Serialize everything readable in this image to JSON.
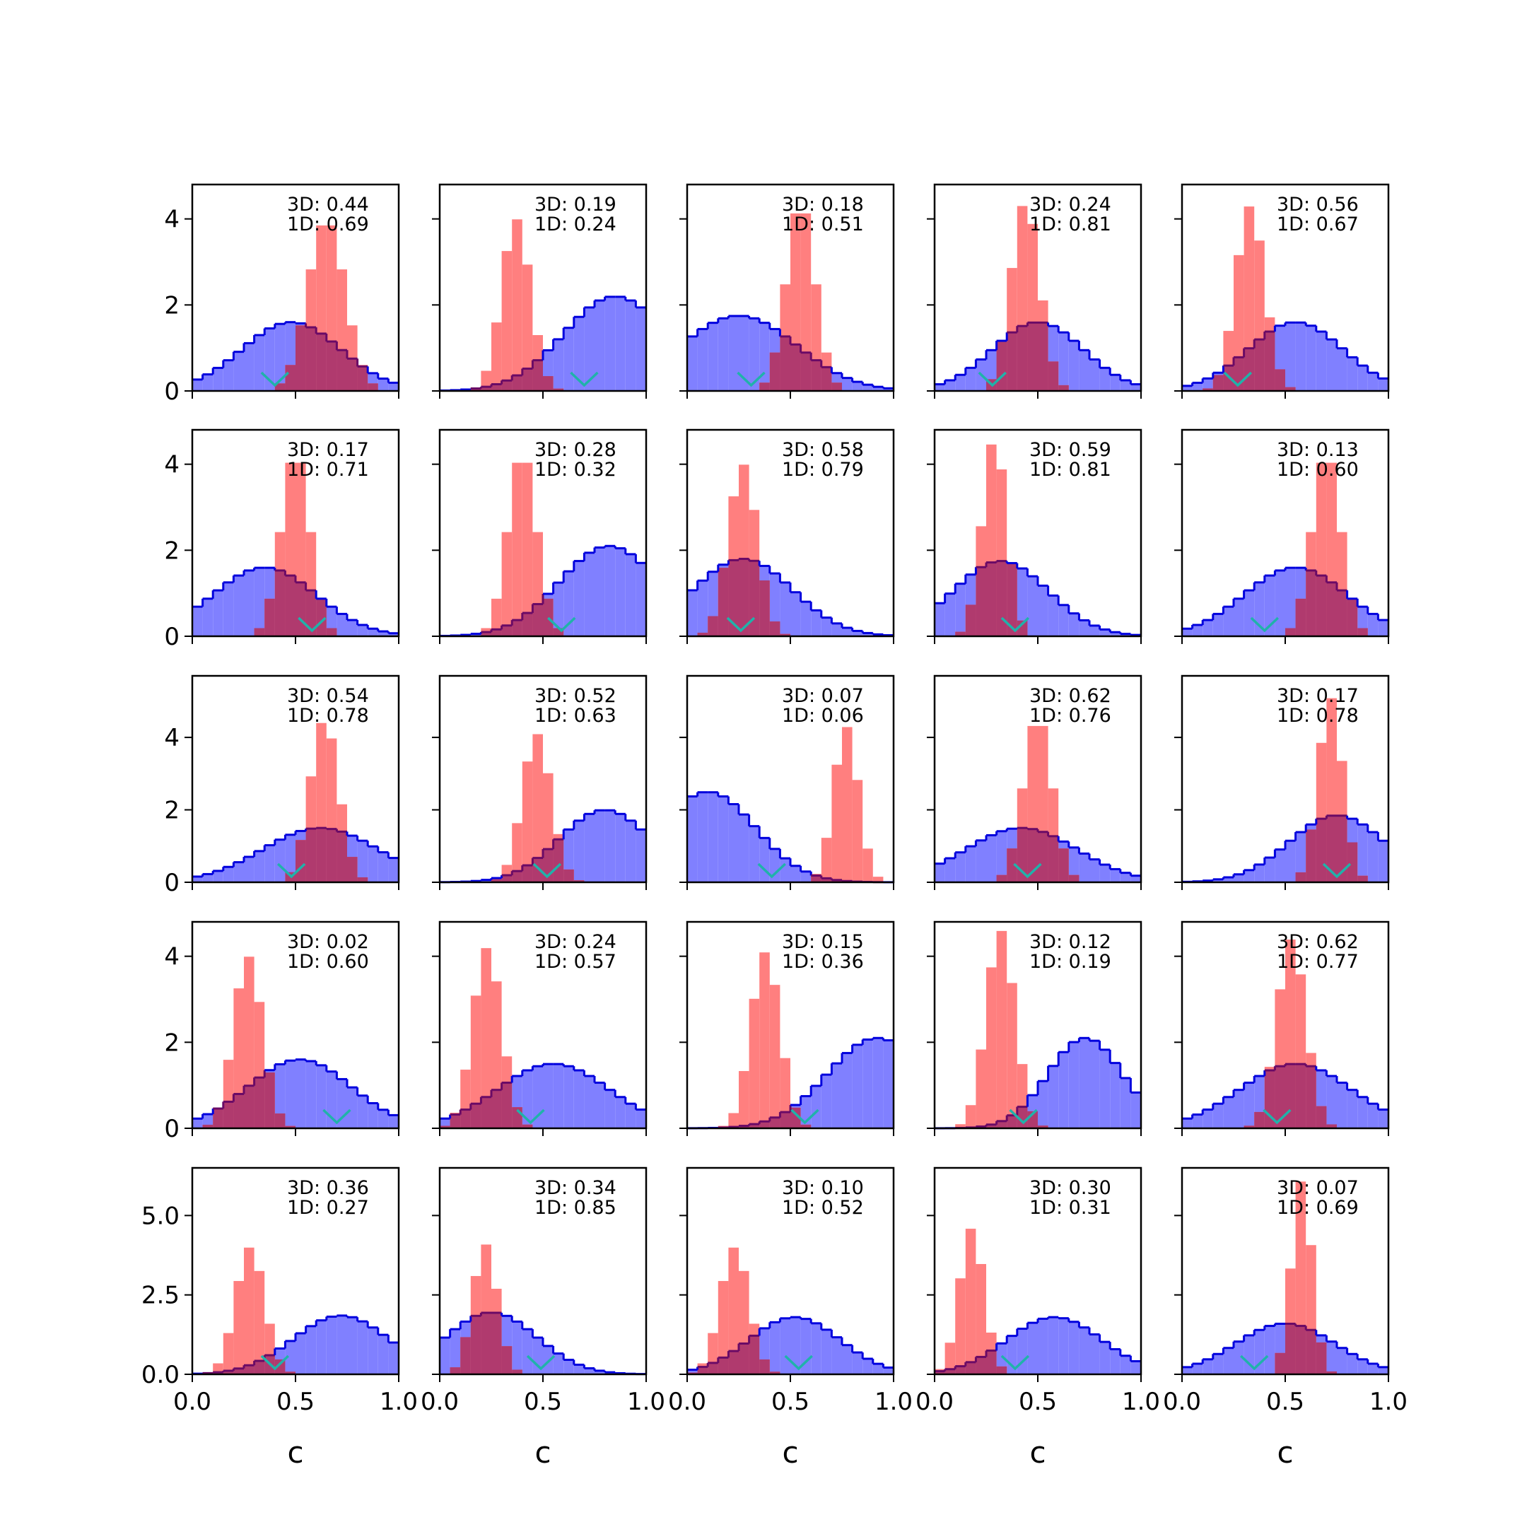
{
  "colors": {
    "blue_fill": "#8080ff",
    "blue_line": "#0000dd",
    "red_fill": "#ff7f7f",
    "overlap_fill": "#b03a6e",
    "overlap_line": "#6a0a66",
    "marker": "#20b2aa",
    "axis": "#000000"
  },
  "marker_icon": "chevron-down-icon",
  "chart_data": {
    "type": "histogram-grid",
    "rows": 5,
    "cols": 5,
    "xlabel": "c",
    "xlim": [
      0,
      1
    ],
    "x_ticks": [
      0.0,
      0.5,
      1.0
    ],
    "x_tick_labels": [
      "0.0",
      "0.5",
      "1.0"
    ],
    "row_ylim": [
      [
        0,
        4.8
      ],
      [
        0,
        4.8
      ],
      [
        0,
        5.7
      ],
      [
        0,
        4.8
      ],
      [
        0,
        6.5
      ]
    ],
    "row_y_ticks": [
      [
        0,
        2,
        4
      ],
      [
        0,
        2,
        4
      ],
      [
        0,
        2,
        4
      ],
      [
        0,
        2,
        4
      ],
      [
        0,
        2.5,
        5.0
      ]
    ],
    "row_y_tick_labels": [
      [
        "0",
        "2",
        "4"
      ],
      [
        "0",
        "2",
        "4"
      ],
      [
        "0",
        "2",
        "4"
      ],
      [
        "0",
        "2",
        "4"
      ],
      [
        "0.0",
        "2.5",
        "5.0"
      ]
    ],
    "panels": [
      {
        "label_3d": "3D: 0.44",
        "label_1d": "1D: 0.69",
        "wide": {
          "mu": 0.48,
          "sd": 0.24,
          "peak": 1.6
        },
        "narrow": {
          "mu": 0.65,
          "sd": 0.09,
          "peak": 4.0
        },
        "marker": 0.4
      },
      {
        "label_3d": "3D: 0.19",
        "label_1d": "1D: 0.24",
        "wide": {
          "mu": 0.85,
          "sd": 0.25,
          "peak": 2.2
        },
        "narrow": {
          "mu": 0.37,
          "sd": 0.07,
          "peak": 4.0
        },
        "marker": 0.7
      },
      {
        "label_3d": "3D: 0.18",
        "label_1d": "1D: 0.51",
        "wide": {
          "mu": 0.25,
          "sd": 0.28,
          "peak": 1.75
        },
        "narrow": {
          "mu": 0.55,
          "sd": 0.07,
          "peak": 4.4
        },
        "marker": 0.31
      },
      {
        "label_3d": "3D: 0.24",
        "label_1d": "1D: 0.81",
        "wide": {
          "mu": 0.5,
          "sd": 0.22,
          "peak": 1.6
        },
        "narrow": {
          "mu": 0.44,
          "sd": 0.07,
          "peak": 4.4
        },
        "marker": 0.28
      },
      {
        "label_3d": "3D: 0.56",
        "label_1d": "1D: 0.67",
        "wide": {
          "mu": 0.55,
          "sd": 0.23,
          "peak": 1.6
        },
        "narrow": {
          "mu": 0.33,
          "sd": 0.07,
          "peak": 4.3
        },
        "marker": 0.27
      },
      {
        "label_3d": "3D: 0.17",
        "label_1d": "1D: 0.71",
        "wide": {
          "mu": 0.35,
          "sd": 0.25,
          "peak": 1.6
        },
        "narrow": {
          "mu": 0.5,
          "sd": 0.07,
          "peak": 4.3
        },
        "marker": 0.58
      },
      {
        "label_3d": "3D: 0.28",
        "label_1d": "1D: 0.32",
        "wide": {
          "mu": 0.82,
          "sd": 0.24,
          "peak": 2.1
        },
        "narrow": {
          "mu": 0.4,
          "sd": 0.07,
          "peak": 4.3
        },
        "marker": 0.59
      },
      {
        "label_3d": "3D: 0.58",
        "label_1d": "1D: 0.79",
        "wide": {
          "mu": 0.27,
          "sd": 0.24,
          "peak": 1.8
        },
        "narrow": {
          "mu": 0.27,
          "sd": 0.07,
          "peak": 4.0
        },
        "marker": 0.26
      },
      {
        "label_3d": "3D: 0.59",
        "label_1d": "1D: 0.81",
        "wide": {
          "mu": 0.32,
          "sd": 0.23,
          "peak": 1.75
        },
        "narrow": {
          "mu": 0.29,
          "sd": 0.06,
          "peak": 4.6
        },
        "marker": 0.39
      },
      {
        "label_3d": "3D: 0.13",
        "label_1d": "1D: 0.60",
        "wide": {
          "mu": 0.55,
          "sd": 0.25,
          "peak": 1.6
        },
        "narrow": {
          "mu": 0.7,
          "sd": 0.07,
          "peak": 4.3
        },
        "marker": 0.4
      },
      {
        "label_3d": "3D: 0.54",
        "label_1d": "1D: 0.78",
        "wide": {
          "mu": 0.62,
          "sd": 0.28,
          "peak": 1.5
        },
        "narrow": {
          "mu": 0.64,
          "sd": 0.07,
          "peak": 4.5
        },
        "marker": 0.48
      },
      {
        "label_3d": "3D: 0.52",
        "label_1d": "1D: 0.63",
        "wide": {
          "mu": 0.8,
          "sd": 0.22,
          "peak": 2.0
        },
        "narrow": {
          "mu": 0.47,
          "sd": 0.07,
          "peak": 4.1
        },
        "marker": 0.52
      },
      {
        "label_3d": "3D: 0.07",
        "label_1d": "1D: 0.06",
        "wide": {
          "mu": 0.1,
          "sd": 0.23,
          "peak": 2.5
        },
        "narrow": {
          "mu": 0.77,
          "sd": 0.06,
          "peak": 4.3
        },
        "marker": 0.41
      },
      {
        "label_3d": "3D: 0.62",
        "label_1d": "1D: 0.76",
        "wide": {
          "mu": 0.42,
          "sd": 0.27,
          "peak": 1.5
        },
        "narrow": {
          "mu": 0.5,
          "sd": 0.07,
          "peak": 4.6
        },
        "marker": 0.45
      },
      {
        "label_3d": "3D: 0.17",
        "label_1d": "1D: 0.78",
        "wide": {
          "mu": 0.75,
          "sd": 0.23,
          "peak": 1.85
        },
        "narrow": {
          "mu": 0.72,
          "sd": 0.06,
          "peak": 5.1
        },
        "marker": 0.75
      },
      {
        "label_3d": "3D: 0.02",
        "label_1d": "1D: 0.60",
        "wide": {
          "mu": 0.52,
          "sd": 0.25,
          "peak": 1.6
        },
        "narrow": {
          "mu": 0.27,
          "sd": 0.07,
          "peak": 4.0
        },
        "marker": 0.7
      },
      {
        "label_3d": "3D: 0.24",
        "label_1d": "1D: 0.57",
        "wide": {
          "mu": 0.55,
          "sd": 0.27,
          "peak": 1.5
        },
        "narrow": {
          "mu": 0.23,
          "sd": 0.07,
          "peak": 4.2
        },
        "marker": 0.44
      },
      {
        "label_3d": "3D: 0.15",
        "label_1d": "1D: 0.36",
        "wide": {
          "mu": 0.92,
          "sd": 0.24,
          "peak": 2.1
        },
        "narrow": {
          "mu": 0.38,
          "sd": 0.07,
          "peak": 4.1
        },
        "marker": 0.57
      },
      {
        "label_3d": "3D: 0.12",
        "label_1d": "1D: 0.19",
        "wide": {
          "mu": 0.73,
          "sd": 0.18,
          "peak": 2.1
        },
        "narrow": {
          "mu": 0.32,
          "sd": 0.07,
          "peak": 4.6
        },
        "marker": 0.43
      },
      {
        "label_3d": "3D: 0.62",
        "label_1d": "1D: 0.77",
        "wide": {
          "mu": 0.55,
          "sd": 0.27,
          "peak": 1.5
        },
        "narrow": {
          "mu": 0.53,
          "sd": 0.07,
          "peak": 4.4
        },
        "marker": 0.46
      },
      {
        "label_3d": "3D: 0.36",
        "label_1d": "1D: 0.27",
        "wide": {
          "mu": 0.72,
          "sd": 0.23,
          "peak": 1.85
        },
        "narrow": {
          "mu": 0.28,
          "sd": 0.07,
          "peak": 4.0
        },
        "marker": 0.4
      },
      {
        "label_3d": "3D: 0.34",
        "label_1d": "1D: 0.85",
        "wide": {
          "mu": 0.25,
          "sd": 0.22,
          "peak": 1.95
        },
        "narrow": {
          "mu": 0.22,
          "sd": 0.06,
          "peak": 4.1
        },
        "marker": 0.49
      },
      {
        "label_3d": "3D: 0.10",
        "label_1d": "1D: 0.52",
        "wide": {
          "mu": 0.52,
          "sd": 0.22,
          "peak": 1.8
        },
        "narrow": {
          "mu": 0.23,
          "sd": 0.07,
          "peak": 4.0
        },
        "marker": 0.54
      },
      {
        "label_3d": "3D: 0.30",
        "label_1d": "1D: 0.31",
        "wide": {
          "mu": 0.58,
          "sd": 0.23,
          "peak": 1.8
        },
        "narrow": {
          "mu": 0.18,
          "sd": 0.06,
          "peak": 4.6
        },
        "marker": 0.39
      },
      {
        "label_3d": "3D: 0.07",
        "label_1d": "1D: 0.69",
        "wide": {
          "mu": 0.5,
          "sd": 0.24,
          "peak": 1.6
        },
        "narrow": {
          "mu": 0.58,
          "sd": 0.05,
          "peak": 6.1
        },
        "marker": 0.35
      }
    ]
  }
}
